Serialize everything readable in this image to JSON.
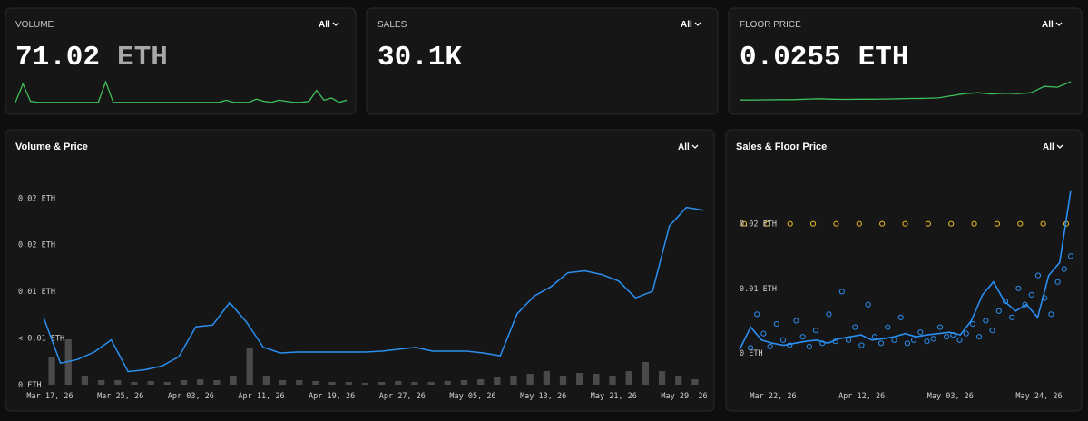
{
  "stats": [
    {
      "label": "VOLUME",
      "filter": "All",
      "value": "71.02",
      "unit": "ETH",
      "sparkline": [
        1,
        18,
        2,
        1,
        1,
        1,
        1,
        1,
        1,
        1,
        1,
        1,
        20,
        1,
        1,
        1,
        1,
        1,
        1,
        1,
        1,
        1,
        1,
        1,
        1,
        1,
        1,
        1,
        3,
        1,
        1,
        1,
        4,
        2,
        1,
        3,
        2,
        1,
        1,
        2,
        12,
        3,
        5,
        1,
        3
      ]
    },
    {
      "label": "SALES",
      "filter": "All",
      "value": "30.1K"
    },
    {
      "label": "FLOOR PRICE",
      "filter": "All",
      "value": "0.0255",
      "unit": "ETH",
      "sparkline": [
        0.004,
        0.004,
        0.0042,
        0.0045,
        0.0045,
        0.005,
        0.0055,
        0.005,
        0.0048,
        0.005,
        0.005,
        0.0052,
        0.0055,
        0.0058,
        0.006,
        0.0065,
        0.009,
        0.0115,
        0.0125,
        0.011,
        0.012,
        0.0115,
        0.0125,
        0.02,
        0.019,
        0.0255
      ]
    }
  ],
  "charts": [
    {
      "type": "line_bar",
      "title": "Volume & Price",
      "filter": "All",
      "xticks": [
        "Mar 17, 26",
        "Mar 25, 26",
        "Apr 03, 26",
        "Apr 11, 26",
        "Apr 19, 26",
        "Apr 27, 26",
        "May 05, 26",
        "May 13, 26",
        "May 21, 26",
        "May 29, 26"
      ],
      "ylim": [
        0,
        0.021
      ],
      "yticks": [
        {
          "value": 0.02,
          "label": "0.02 ETH"
        },
        {
          "value": 0.015,
          "label": "0.02 ETH"
        },
        {
          "value": 0.01,
          "label": "0.01 ETH"
        },
        {
          "value": 0.005,
          "label": "< 0.01 ETH"
        },
        {
          "value": 0,
          "label": "0 ETH"
        }
      ],
      "price": {
        "color": "#2a8ff0",
        "values": [
          0.0072,
          0.0023,
          0.0027,
          0.0035,
          0.0048,
          0.0014,
          0.0016,
          0.002,
          0.003,
          0.0062,
          0.0064,
          0.0088,
          0.0067,
          0.004,
          0.0034,
          0.0035,
          0.0035,
          0.0035,
          0.0035,
          0.0035,
          0.0036,
          0.0038,
          0.004,
          0.0036,
          0.0036,
          0.0036,
          0.0034,
          0.0031,
          0.0076,
          0.0095,
          0.0105,
          0.012,
          0.0122,
          0.0118,
          0.0111,
          0.0093,
          0.01,
          0.017,
          0.019,
          0.0187
        ]
      },
      "volume": {
        "color": "#4a4a4a",
        "values": [
          3,
          5,
          1,
          0.5,
          0.5,
          0.3,
          0.4,
          0.3,
          0.5,
          0.6,
          0.5,
          1,
          4,
          1,
          0.5,
          0.5,
          0.4,
          0.3,
          0.3,
          0.2,
          0.3,
          0.4,
          0.3,
          0.3,
          0.4,
          0.5,
          0.6,
          0.8,
          1,
          1.2,
          1.5,
          1,
          1.3,
          1.2,
          1,
          1.5,
          2.5,
          1.5,
          1,
          0.6
        ]
      }
    },
    {
      "type": "scatter_line",
      "title": "Sales & Floor Price",
      "filter": "All",
      "xticks": [
        "Mar 22, 26",
        "Apr 12, 26",
        "May 03, 26",
        "May 24, 26"
      ],
      "ylim": [
        0,
        0.026
      ],
      "yticks": [
        {
          "value": 0.02,
          "label": "0.02 ETH"
        },
        {
          "value": 0.01,
          "label": "0.01 ETH"
        },
        {
          "value": 0,
          "label": "0 ETH"
        }
      ],
      "sales": {
        "color": "#2a8ff0",
        "values": [
          0.0008,
          0.006,
          0.003,
          0.001,
          0.0045,
          0.002,
          0.0012,
          0.005,
          0.0025,
          0.001,
          0.0035,
          0.0015,
          0.006,
          0.0018,
          0.0095,
          0.002,
          0.004,
          0.0012,
          0.0075,
          0.0025,
          0.0015,
          0.004,
          0.002,
          0.0055,
          0.0015,
          0.002,
          0.0032,
          0.0018,
          0.0022,
          0.004,
          0.0025,
          0.0028,
          0.002,
          0.003,
          0.0045,
          0.0025,
          0.005,
          0.0035,
          0.0065,
          0.008,
          0.0055,
          0.01,
          0.0075,
          0.009,
          0.012,
          0.0085,
          0.006,
          0.011,
          0.013,
          0.015
        ]
      },
      "floor": {
        "color": "#2a8ff0",
        "values": [
          0.0005,
          0.004,
          0.002,
          0.0015,
          0.0012,
          0.0015,
          0.0018,
          0.002,
          0.0015,
          0.0022,
          0.0025,
          0.0028,
          0.002,
          0.0022,
          0.0025,
          0.003,
          0.0025,
          0.0028,
          0.003,
          0.0032,
          0.0028,
          0.005,
          0.009,
          0.011,
          0.008,
          0.0065,
          0.0075,
          0.0055,
          0.012,
          0.014,
          0.0252
        ]
      },
      "highlights": {
        "color": "#e8b923",
        "values": [
          0.02,
          0.02,
          0.02,
          0.02,
          0.02,
          0.02,
          0.02,
          0.02,
          0.02,
          0.02,
          0.02,
          0.02,
          0.02,
          0.02,
          0.02
        ]
      }
    }
  ]
}
